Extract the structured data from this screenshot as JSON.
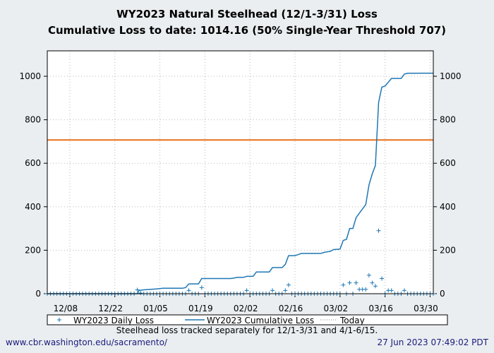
{
  "chart_data": {
    "type": "line",
    "title": "WY2023 Natural Steelhead (12/1-3/31) Loss",
    "subtitle": "Cumulative Loss to date: 1014.16 (50% Single-Year Threshold 707)",
    "xlabel": "",
    "ylabel": "",
    "ylim": [
      0,
      1117
    ],
    "xlim_days": [
      0,
      120
    ],
    "x_origin": "12/01",
    "x_ticks": [
      {
        "day": 7,
        "label": "12/08"
      },
      {
        "day": 21,
        "label": "12/22"
      },
      {
        "day": 35,
        "label": "01/05"
      },
      {
        "day": 49,
        "label": "01/19"
      },
      {
        "day": 63,
        "label": "02/02"
      },
      {
        "day": 77,
        "label": "02/16"
      },
      {
        "day": 91,
        "label": "03/02"
      },
      {
        "day": 105,
        "label": "03/16"
      },
      {
        "day": 119,
        "label": "03/30"
      }
    ],
    "y_ticks": [
      0,
      200,
      400,
      600,
      800,
      1000
    ],
    "grid": true,
    "threshold": {
      "value": 707,
      "color": "#e8701a"
    },
    "series": [
      {
        "name": "WY2023 Daily Loss",
        "style": "marker-plus",
        "color": "#1f77b4",
        "points": [
          [
            28,
            18
          ],
          [
            29,
            3
          ],
          [
            44,
            15
          ],
          [
            48,
            28
          ],
          [
            62,
            15
          ],
          [
            70,
            15
          ],
          [
            74,
            15
          ],
          [
            75,
            40
          ],
          [
            92,
            40
          ],
          [
            94,
            50
          ],
          [
            96,
            50
          ],
          [
            97,
            20
          ],
          [
            98,
            20
          ],
          [
            99,
            20
          ],
          [
            100,
            85
          ],
          [
            101,
            50
          ],
          [
            102,
            35
          ],
          [
            103,
            290
          ],
          [
            104,
            70
          ],
          [
            106,
            15
          ],
          [
            107,
            15
          ],
          [
            111,
            15
          ]
        ]
      },
      {
        "name": "WY2023 Cumulative Loss",
        "style": "line",
        "color": "#1f77b4",
        "points": [
          [
            0,
            0
          ],
          [
            28,
            0
          ],
          [
            28.5,
            15
          ],
          [
            30,
            18
          ],
          [
            32,
            20
          ],
          [
            34,
            22
          ],
          [
            36,
            25
          ],
          [
            42,
            25
          ],
          [
            43,
            28
          ],
          [
            44,
            45
          ],
          [
            47,
            45
          ],
          [
            48,
            70
          ],
          [
            57,
            70
          ],
          [
            58,
            72
          ],
          [
            59,
            75
          ],
          [
            61,
            75
          ],
          [
            62,
            80
          ],
          [
            64,
            80
          ],
          [
            65,
            100
          ],
          [
            69,
            100
          ],
          [
            70,
            120
          ],
          [
            73,
            120
          ],
          [
            74,
            135
          ],
          [
            75,
            175
          ],
          [
            77,
            175
          ],
          [
            78,
            180
          ],
          [
            79,
            185
          ],
          [
            85,
            185
          ],
          [
            86,
            190
          ],
          [
            88,
            195
          ],
          [
            89,
            203
          ],
          [
            91,
            205
          ],
          [
            92,
            245
          ],
          [
            93,
            250
          ],
          [
            94,
            300
          ],
          [
            95,
            300
          ],
          [
            96,
            350
          ],
          [
            97,
            370
          ],
          [
            99,
            410
          ],
          [
            100,
            500
          ],
          [
            101,
            550
          ],
          [
            102,
            590
          ],
          [
            103,
            880
          ],
          [
            104,
            950
          ],
          [
            105,
            955
          ],
          [
            107,
            990
          ],
          [
            110,
            990
          ],
          [
            111,
            1010
          ],
          [
            112,
            1014
          ],
          [
            120,
            1014.16
          ]
        ]
      },
      {
        "name": "Today",
        "style": "dotted",
        "color": "#888888",
        "points": []
      }
    ],
    "legend": "bottom"
  },
  "footer": {
    "note": "Steelhead loss tracked separately for 12/1-3/31 and 4/1-6/15.",
    "url": "www.cbr.washington.edu/sacramento/",
    "timestamp": "27 Jun 2023 07:49:02 PDT"
  }
}
